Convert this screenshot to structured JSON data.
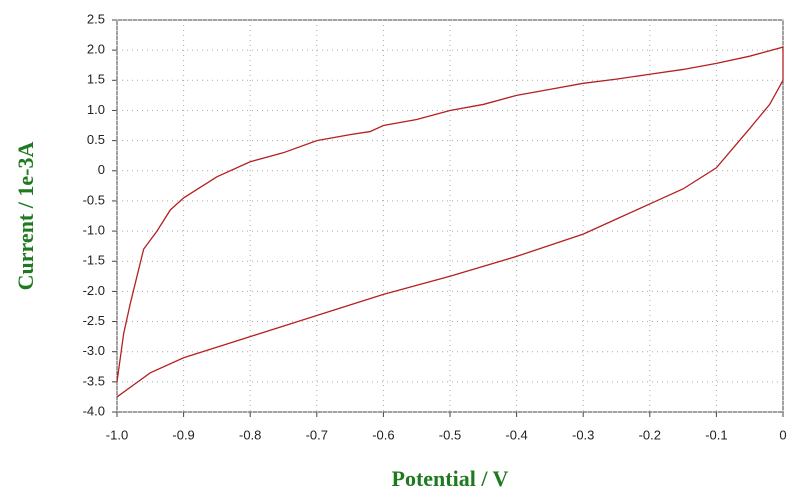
{
  "chart_data": {
    "type": "line",
    "x_label": "Potential / V",
    "y_label": "Current / 1e-3A",
    "xlim": [
      -1,
      0
    ],
    "ylim": [
      -4,
      2.5
    ],
    "xticks": [
      {
        "value": -1,
        "label": "-1.0"
      },
      -0.9,
      -0.8,
      -0.7,
      -0.6,
      -0.5,
      -0.4,
      -0.3,
      -0.2,
      -0.1,
      0
    ],
    "yticks": [
      2.5,
      {
        "value": 2,
        "label": "2.0"
      },
      1.5,
      {
        "value": 1,
        "label": "1.0"
      },
      0.5,
      0,
      -0.5,
      {
        "value": -1,
        "label": "-1.0"
      },
      -1.5,
      {
        "value": -2,
        "label": "-2.0"
      },
      -2.5,
      {
        "value": -3,
        "label": "-3.0"
      },
      -3.5,
      {
        "value": -4,
        "label": "-4.0"
      }
    ],
    "grid": true,
    "x": [
      -1.0,
      -0.99,
      -0.98,
      -0.96,
      -0.94,
      -0.92,
      -0.9,
      -0.85,
      -0.8,
      -0.75,
      -0.7,
      -0.65,
      -0.62,
      -0.6,
      -0.55,
      -0.5,
      -0.45,
      -0.4,
      -0.35,
      -0.3,
      -0.25,
      -0.2,
      -0.15,
      -0.1,
      -0.05,
      0,
      0,
      -0.02,
      -0.05,
      -0.1,
      -0.15,
      -0.2,
      -0.25,
      -0.3,
      -0.4,
      -0.5,
      -0.6,
      -0.7,
      -0.8,
      -0.9,
      -0.95,
      -1.0
    ],
    "series": [
      {
        "color": "#b52020",
        "values": [
          -3.5,
          -2.7,
          -2.2,
          -1.3,
          -1.0,
          -0.65,
          -0.45,
          -0.1,
          0.15,
          0.3,
          0.5,
          0.6,
          0.65,
          0.75,
          0.85,
          1.0,
          1.1,
          1.25,
          1.35,
          1.45,
          1.52,
          1.6,
          1.68,
          1.78,
          1.9,
          2.05,
          1.5,
          1.1,
          0.7,
          0.05,
          -0.3,
          -0.55,
          -0.8,
          -1.05,
          -1.42,
          -1.75,
          -2.05,
          -2.4,
          -2.75,
          -3.1,
          -3.35,
          -3.75
        ]
      }
    ]
  }
}
